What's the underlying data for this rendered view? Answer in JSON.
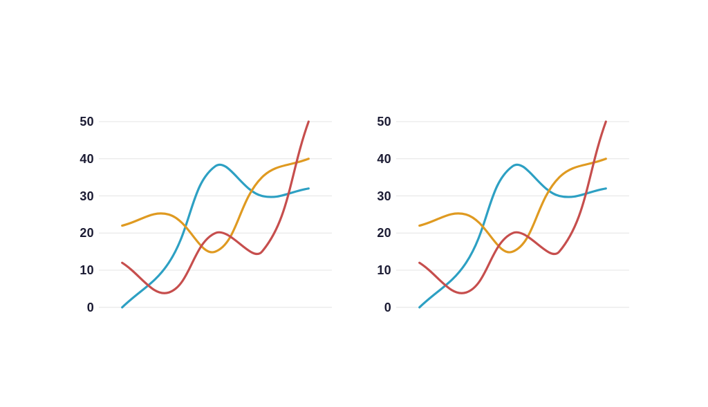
{
  "page": {
    "background_color": "#ffffff"
  },
  "chart_data": [
    {
      "type": "line",
      "position": "left",
      "title": "",
      "xlabel": "",
      "ylabel": "",
      "x": [
        1,
        2,
        3,
        4,
        5
      ],
      "series": [
        {
          "name": "teal",
          "color": "#2DA0C3",
          "values": [
            0,
            12,
            38,
            30,
            32
          ]
        },
        {
          "name": "orange",
          "color": "#DF9A21",
          "values": [
            22,
            25,
            15,
            35,
            40
          ]
        },
        {
          "name": "red",
          "color": "#C64E4D",
          "values": [
            12,
            4,
            20,
            15,
            50
          ]
        }
      ],
      "ylim": [
        0,
        50
      ],
      "y_ticks": [
        0,
        10,
        20,
        30,
        40,
        50
      ],
      "y_tick_labels": [
        "0",
        "10",
        "20",
        "30",
        "40",
        "50"
      ],
      "grid": true,
      "grid_color": "#E4E4E4",
      "tick_label_color": "#1B1B33",
      "legend": "none",
      "smooth": true,
      "line_width": 3.2
    },
    {
      "type": "line",
      "position": "right",
      "title": "",
      "xlabel": "",
      "ylabel": "",
      "x": [
        1,
        2,
        3,
        4,
        5
      ],
      "series": [
        {
          "name": "teal",
          "color": "#2DA0C3",
          "values": [
            0,
            12,
            38,
            30,
            32
          ]
        },
        {
          "name": "orange",
          "color": "#DF9A21",
          "values": [
            22,
            25,
            15,
            35,
            40
          ]
        },
        {
          "name": "red",
          "color": "#C64E4D",
          "values": [
            12,
            4,
            20,
            15,
            50
          ]
        }
      ],
      "ylim": [
        0,
        50
      ],
      "y_ticks": [
        0,
        10,
        20,
        30,
        40,
        50
      ],
      "y_tick_labels": [
        "0",
        "10",
        "20",
        "30",
        "40",
        "50"
      ],
      "grid": true,
      "grid_color": "#E4E4E4",
      "tick_label_color": "#1B1B33",
      "legend": "none",
      "smooth": true,
      "line_width": 3.2
    }
  ]
}
